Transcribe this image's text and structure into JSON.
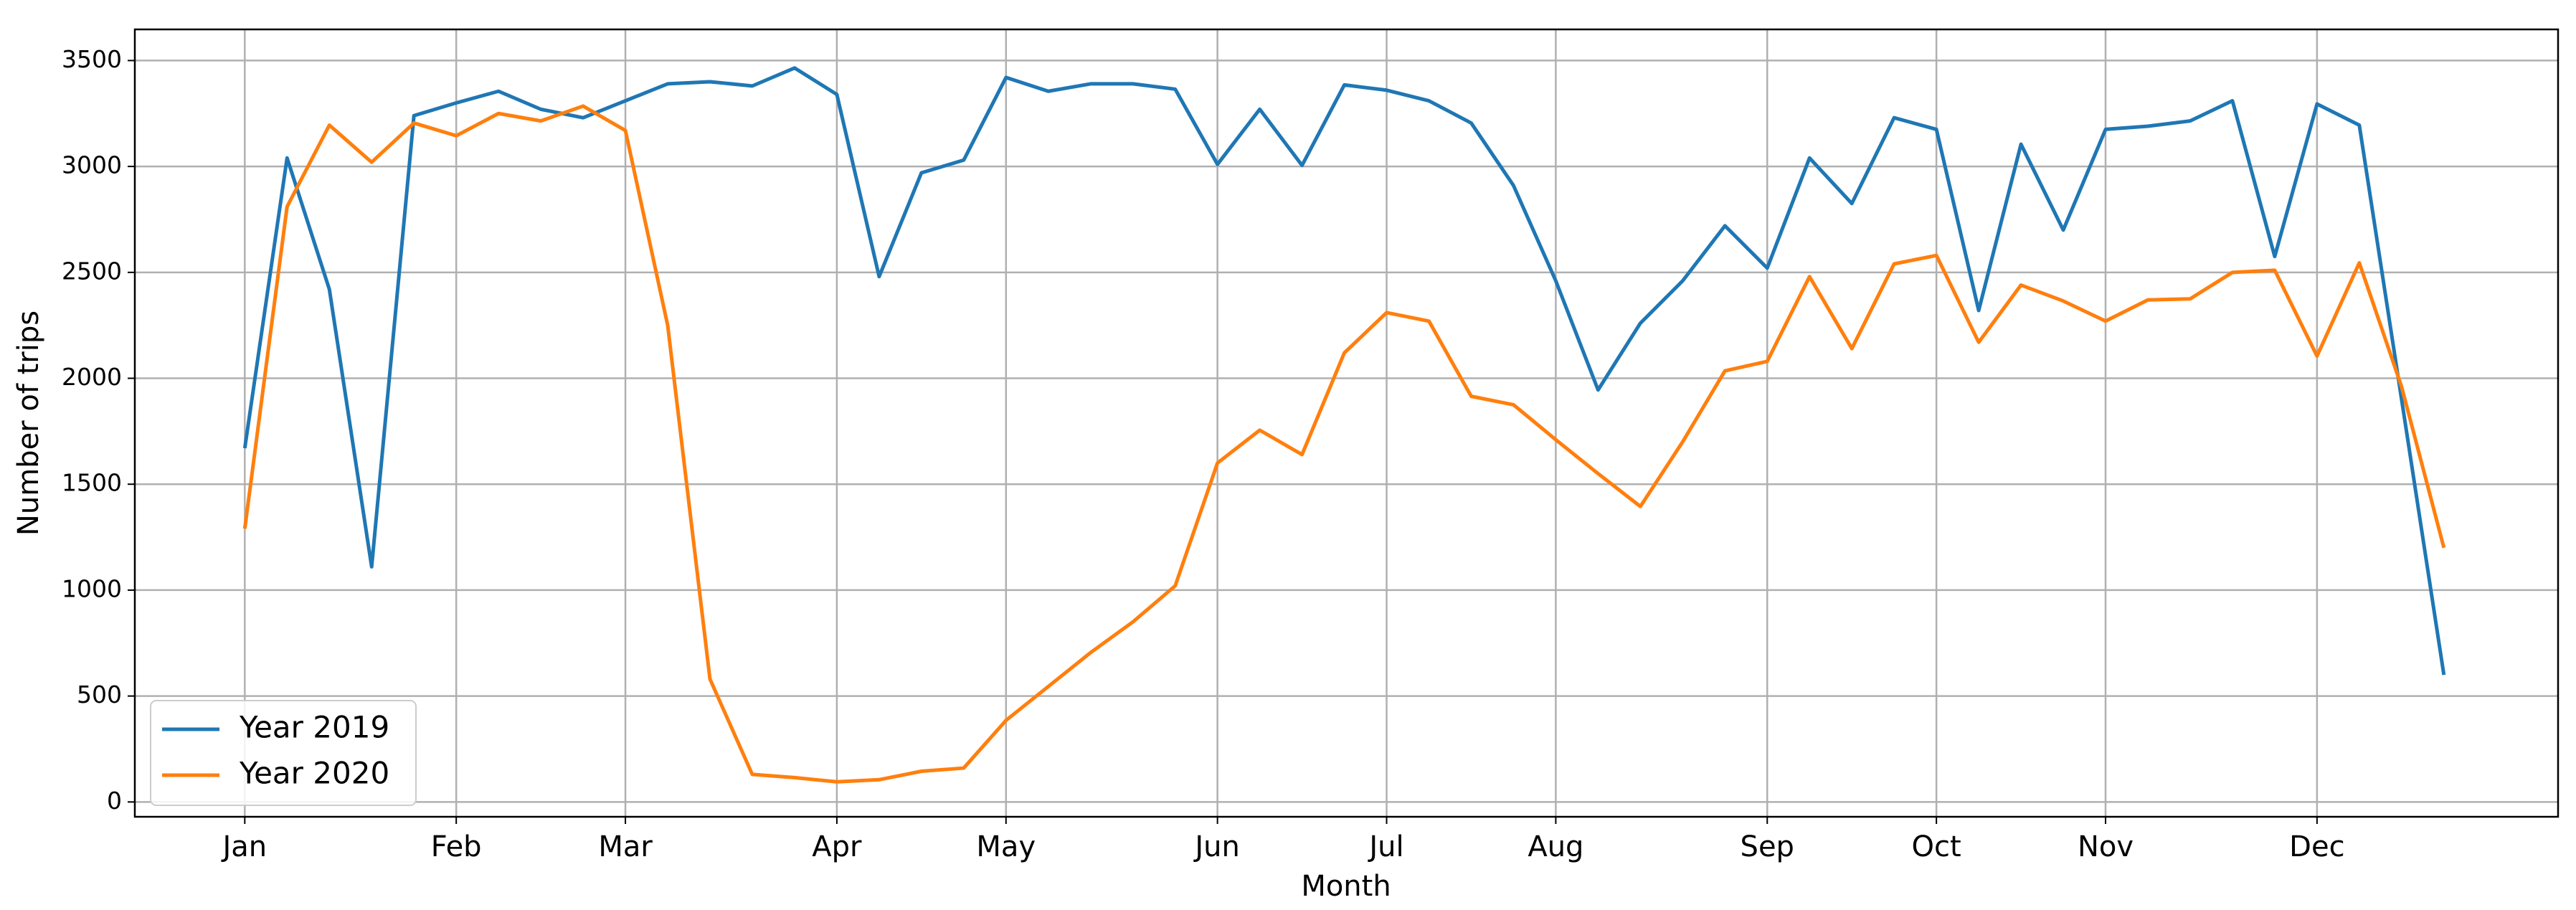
{
  "chart_data": {
    "type": "line",
    "x_label": "Month",
    "y_label": "Number of trips",
    "x": [
      0,
      1,
      2,
      3,
      4,
      5,
      6,
      7,
      8,
      9,
      10,
      11,
      12,
      13,
      14,
      15,
      16,
      17,
      18,
      19,
      20,
      21,
      22,
      23,
      24,
      25,
      26,
      27,
      28,
      29,
      30,
      31,
      32,
      33,
      34,
      35,
      36,
      37,
      38,
      39,
      40,
      41,
      42,
      43,
      44,
      45,
      46,
      47,
      48,
      49,
      50,
      51,
      52
    ],
    "series": [
      {
        "name": "Year 2019",
        "color": "#1f77b4",
        "values": [
          1670,
          3040,
          2420,
          1110,
          3240,
          3300,
          3355,
          3270,
          3230,
          3310,
          3390,
          3400,
          3380,
          3465,
          3340,
          2480,
          2970,
          3030,
          3420,
          3355,
          3390,
          3390,
          3365,
          3010,
          3270,
          3005,
          3385,
          3360,
          3310,
          3205,
          2910,
          2460,
          1945,
          2260,
          2460,
          2720,
          2520,
          3040,
          2825,
          3230,
          3175,
          2320,
          3105,
          2700,
          3175,
          3190,
          3215,
          3310,
          2575,
          3295,
          3195,
          1900,
          600
        ]
      },
      {
        "name": "Year 2020",
        "color": "#ff7f0e",
        "values": [
          1290,
          2810,
          3195,
          3020,
          3205,
          3145,
          3250,
          3215,
          3285,
          3170,
          2250,
          580,
          130,
          115,
          95,
          105,
          145,
          160,
          385,
          545,
          705,
          850,
          1020,
          1600,
          1755,
          1640,
          2120,
          2310,
          2270,
          1915,
          1875,
          1710,
          1550,
          1395,
          1700,
          2035,
          2080,
          2480,
          2140,
          2540,
          2580,
          2170,
          2440,
          2365,
          2270,
          2370,
          2375,
          2500,
          2510,
          2105,
          2545,
          1960,
          1200
        ]
      }
    ],
    "xlim": [
      -2.6,
      54.7
    ],
    "xticks": [
      {
        "value": 0,
        "label": "Jan"
      },
      {
        "value": 5,
        "label": "Feb"
      },
      {
        "value": 9,
        "label": "Mar"
      },
      {
        "value": 14,
        "label": "Apr"
      },
      {
        "value": 18,
        "label": "May"
      },
      {
        "value": 23,
        "label": "Jun"
      },
      {
        "value": 27,
        "label": "Jul"
      },
      {
        "value": 31,
        "label": "Aug"
      },
      {
        "value": 36,
        "label": "Sep"
      },
      {
        "value": 40,
        "label": "Oct"
      },
      {
        "value": 44,
        "label": "Nov"
      },
      {
        "value": 49,
        "label": "Dec"
      }
    ],
    "ylim": [
      -70,
      3647
    ],
    "yticks": [
      0,
      500,
      1000,
      1500,
      2000,
      2500,
      3000,
      3500
    ],
    "grid": true,
    "legend": "lower left"
  }
}
